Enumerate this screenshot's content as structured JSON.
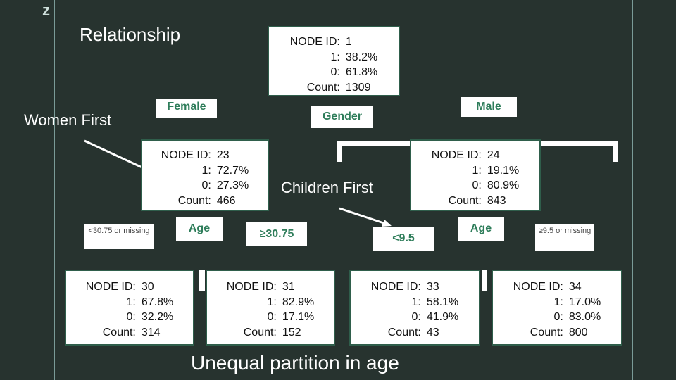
{
  "slide": {
    "title": "Relationship",
    "women_first": "Women First",
    "children_first": "Children First",
    "bottom_caption": "Unequal partition in age",
    "z_logo": "z"
  },
  "nodes": {
    "n1": {
      "id_label": "NODE ID:",
      "id": "1",
      "k1": "1:",
      "v1": "38.2%",
      "k0": "0:",
      "v0": "61.8%",
      "kc": "Count:",
      "vc": "1309"
    },
    "n23": {
      "id_label": "NODE ID:",
      "id": "23",
      "k1": "1:",
      "v1": "72.7%",
      "k0": "0:",
      "v0": "27.3%",
      "kc": "Count:",
      "vc": "466"
    },
    "n24": {
      "id_label": "NODE ID:",
      "id": "24",
      "k1": "1:",
      "v1": "19.1%",
      "k0": "0:",
      "v0": "80.9%",
      "kc": "Count:",
      "vc": "843"
    },
    "n30": {
      "id_label": "NODE ID:",
      "id": "30",
      "k1": "1:",
      "v1": "67.8%",
      "k0": "0:",
      "v0": "32.2%",
      "kc": "Count:",
      "vc": "314"
    },
    "n31": {
      "id_label": "NODE ID:",
      "id": "31",
      "k1": "1:",
      "v1": "82.9%",
      "k0": "0:",
      "v0": "17.1%",
      "kc": "Count:",
      "vc": "152"
    },
    "n33": {
      "id_label": "NODE ID:",
      "id": "33",
      "k1": "1:",
      "v1": "58.1%",
      "k0": "0:",
      "v0": "41.9%",
      "kc": "Count:",
      "vc": "43"
    },
    "n34": {
      "id_label": "NODE ID:",
      "id": "34",
      "k1": "1:",
      "v1": "17.0%",
      "k0": "0:",
      "v0": "83.0%",
      "kc": "Count:",
      "vc": "800"
    }
  },
  "labels": {
    "female": "Female",
    "male": "Male",
    "gender": "Gender",
    "age_left": "Age",
    "age_right": "Age",
    "lt3075": "<30.75 or missing",
    "ge3075": "≥30.75",
    "lt95": "<9.5",
    "ge95": "≥9.5 or missing"
  },
  "colors": {
    "background": "#27332f",
    "label_text": "#2e7d5a",
    "node_border": "#2f5e4b",
    "accent_line": "#7a9b97"
  }
}
